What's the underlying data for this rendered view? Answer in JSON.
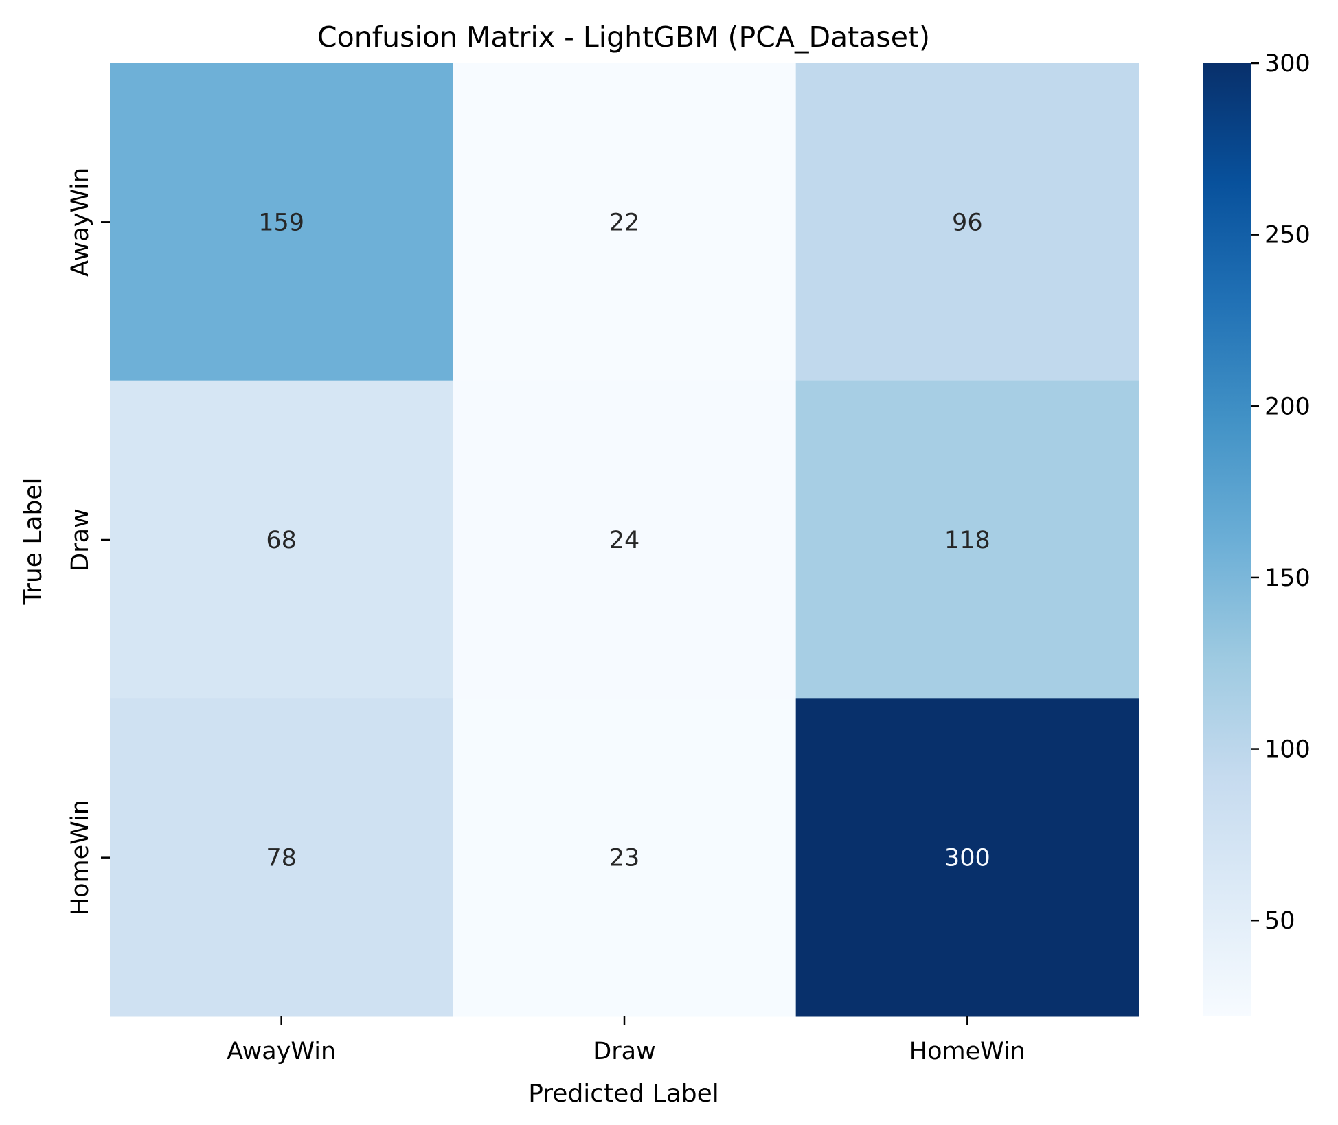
{
  "chart_data": {
    "type": "heatmap",
    "title": "Confusion Matrix - LightGBM (PCA_Dataset)",
    "xlabel": "Predicted Label",
    "ylabel": "True Label",
    "x_categories": [
      "AwayWin",
      "Draw",
      "HomeWin"
    ],
    "y_categories": [
      "AwayWin",
      "Draw",
      "HomeWin"
    ],
    "values": [
      [
        159,
        22,
        96
      ],
      [
        68,
        24,
        118
      ],
      [
        78,
        23,
        300
      ]
    ],
    "colormap": "Blues",
    "color_range": [
      22,
      300
    ],
    "colorbar_ticks": [
      50,
      100,
      150,
      200,
      250,
      300
    ],
    "light_text_color": "#f7fbff",
    "dark_text_color": "#262626"
  }
}
